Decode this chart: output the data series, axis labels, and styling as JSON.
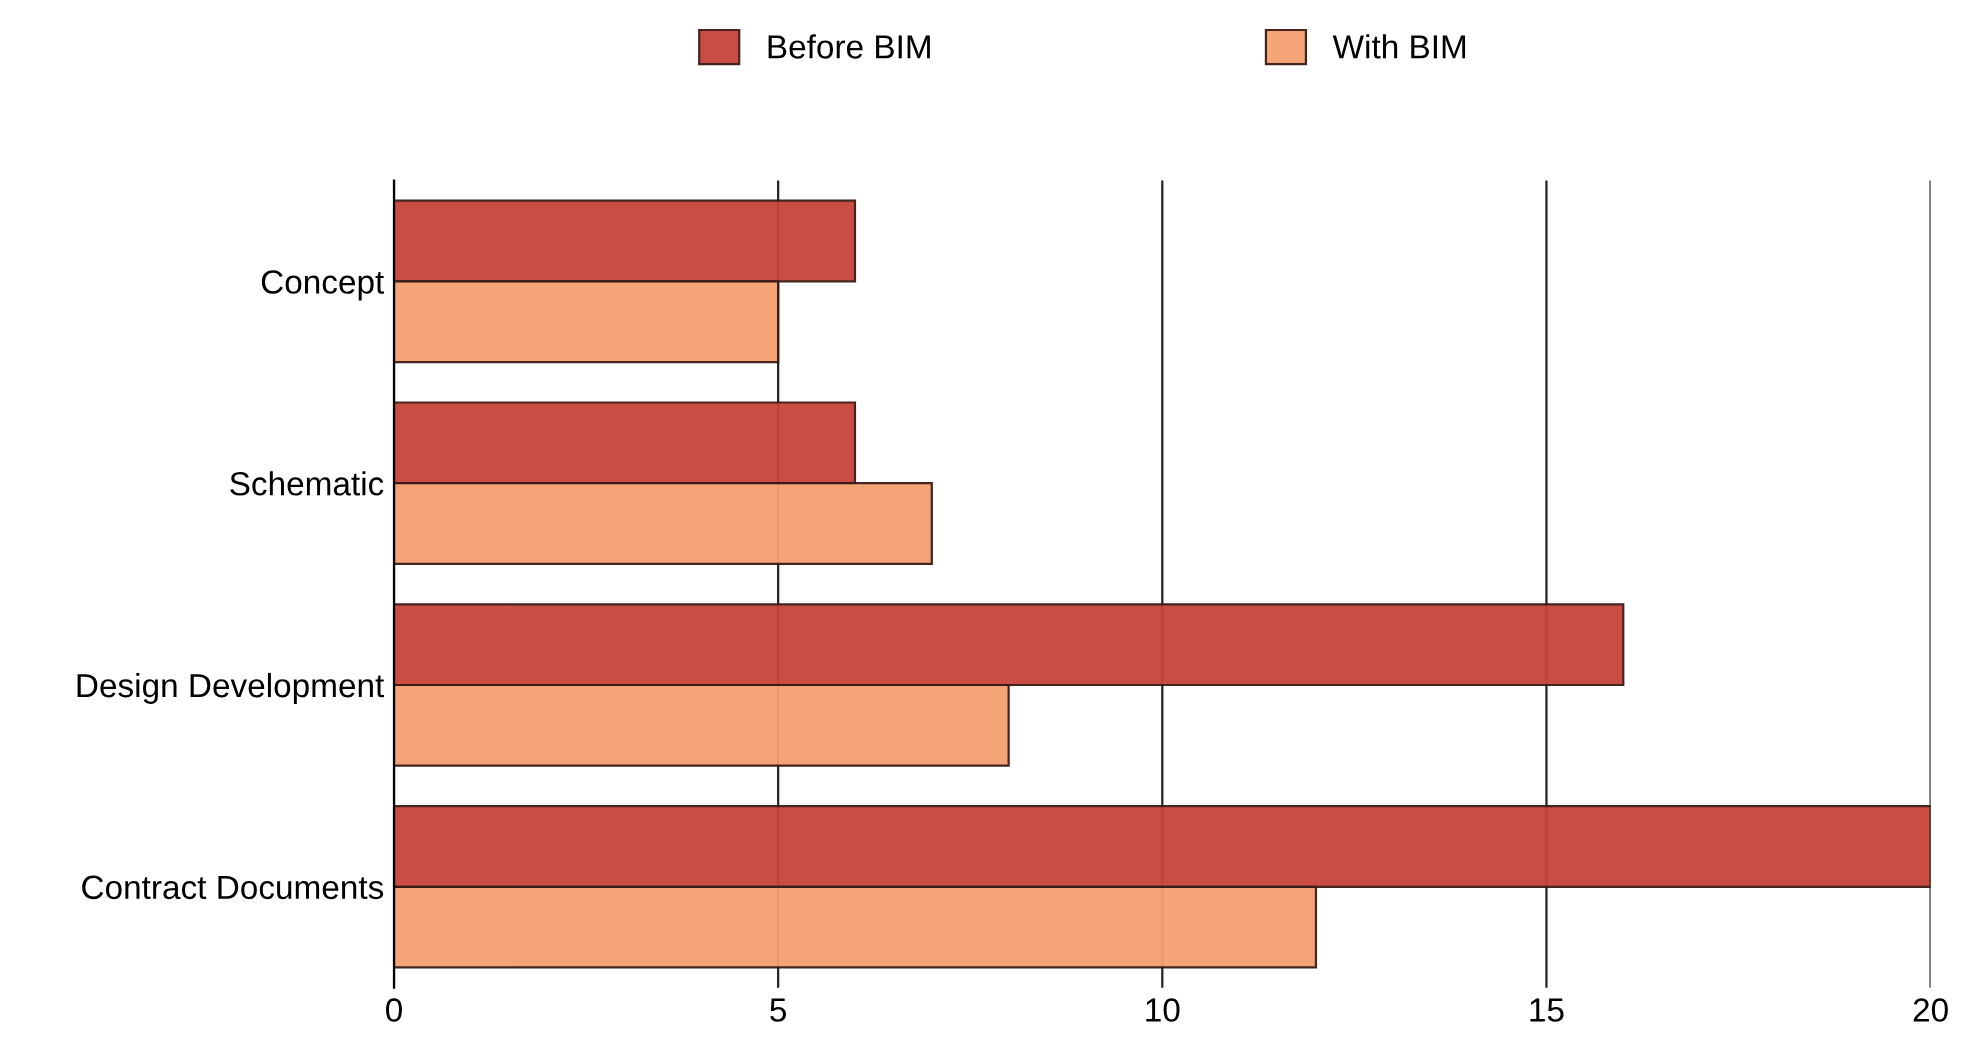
{
  "chart_data": {
    "type": "bar",
    "orientation": "horizontal",
    "categories": [
      "Concept",
      "Schematic",
      "Design Development",
      "Contract Documents"
    ],
    "series": [
      {
        "name": "Before BIM",
        "color": "#c8443a",
        "values": [
          6,
          6,
          16,
          20
        ]
      },
      {
        "name": "With BIM",
        "color": "#f4a070",
        "values": [
          5,
          7,
          8,
          12
        ]
      }
    ],
    "xlim": [
      0,
      20
    ],
    "xticks": [
      0,
      5,
      10,
      15,
      20
    ],
    "grid": "x",
    "legend": "top"
  }
}
